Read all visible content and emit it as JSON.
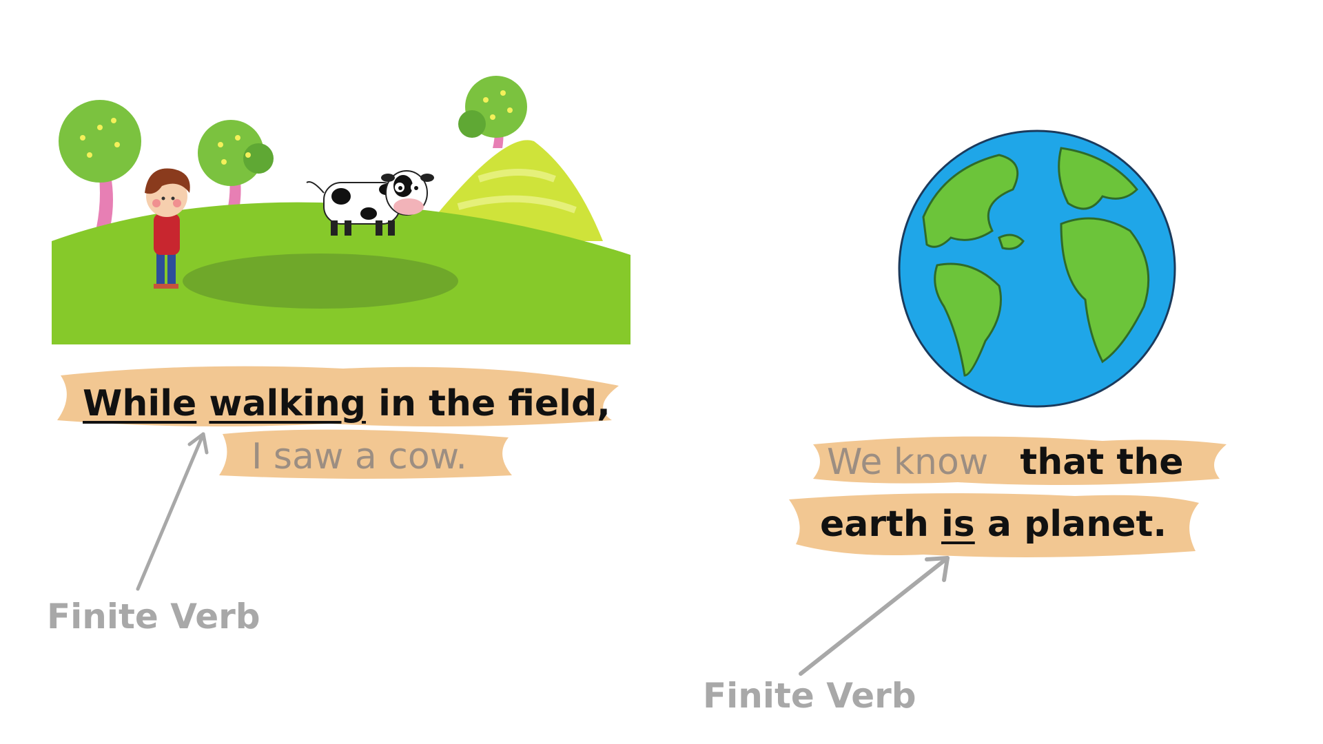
{
  "left_example": {
    "line1": {
      "word1": "While",
      "word2": "walking",
      "rest": " in the field,"
    },
    "line2": "I saw a cow.",
    "annotation": "Finite Verb"
  },
  "right_example": {
    "line1": {
      "part1": "We know",
      "part2": "that the"
    },
    "line2": {
      "part1": "earth ",
      "verb": "is",
      "part2": " a planet."
    },
    "annotation": "Finite Verb"
  },
  "colors": {
    "highlight": "#f2c792",
    "muted_text": "#9c8e82",
    "annotation": "#a8a8a8",
    "grass": "#86c92a",
    "ocean": "#1fa6e8",
    "land": "#6cc43a"
  },
  "icons": {
    "scene": "boy-cow-field-illustration",
    "globe": "earth-globe-illustration",
    "arrows": "pointer-arrow-icon"
  }
}
